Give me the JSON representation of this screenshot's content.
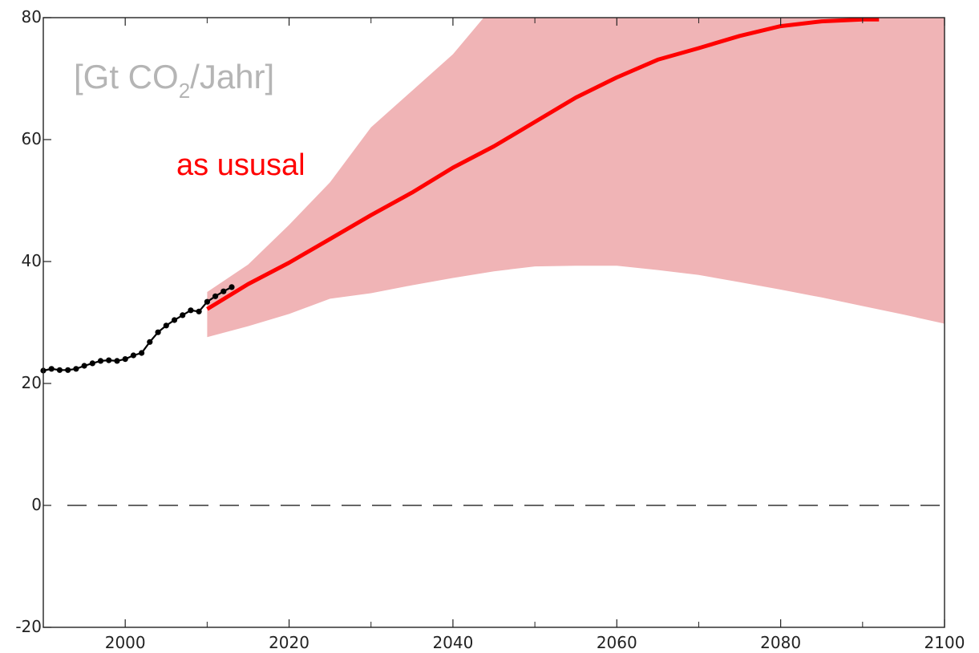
{
  "chart_data": {
    "type": "line",
    "unit_label": {
      "prefix": "[Gt CO",
      "subscript": "2",
      "suffix": "/Jahr]"
    },
    "xlim": [
      1990,
      2100
    ],
    "ylim": [
      -20,
      80
    ],
    "x_ticks": [
      2000,
      2020,
      2040,
      2060,
      2080,
      2100
    ],
    "x_tick_labels": [
      "2000",
      "2020",
      "2040",
      "2060",
      "2080",
      "2100"
    ],
    "y_ticks": [
      -20,
      0,
      20,
      40,
      60,
      80
    ],
    "y_tick_labels": [
      "-20",
      "0",
      "20",
      "40",
      "60",
      "80"
    ],
    "zero_line": {
      "y": 0,
      "style": "dashed",
      "color": "#333333"
    },
    "grid": false,
    "colors": {
      "observed": "#000000",
      "projection": "#ff0000",
      "range_band": "#f0b4b6",
      "unit_label": "#b5b5b5"
    },
    "series": [
      {
        "style": "dotted-line",
        "x": [
          1990,
          1991,
          1992,
          1993,
          1994,
          1995,
          1996,
          1997,
          1998,
          1999,
          2000,
          2001,
          2002,
          2003,
          2004,
          2005,
          2006,
          2007,
          2008,
          2009,
          2010,
          2011,
          2012,
          2013
        ],
        "y": [
          22.1,
          22.4,
          22.2,
          22.2,
          22.4,
          22.9,
          23.3,
          23.7,
          23.8,
          23.7,
          24.0,
          24.6,
          25.0,
          26.8,
          28.4,
          29.5,
          30.4,
          31.2,
          32.0,
          31.8,
          33.4,
          34.3,
          35.1,
          35.8
        ]
      },
      {
        "style": "line",
        "label": "as ususal",
        "x": [
          2010,
          2015,
          2020,
          2025,
          2030,
          2035,
          2040,
          2045,
          2050,
          2055,
          2060,
          2065,
          2070,
          2075,
          2080,
          2085,
          2090,
          2092
        ],
        "y": [
          32.2,
          36.3,
          39.8,
          43.7,
          47.6,
          51.3,
          55.4,
          58.9,
          62.9,
          66.9,
          70.2,
          73.1,
          75.0,
          77.0,
          78.6,
          79.4,
          79.7,
          79.7
        ]
      }
    ],
    "range_band": {
      "x": [
        2010,
        2015,
        2020,
        2025,
        2030,
        2035,
        2040,
        2045,
        2050,
        2055,
        2060,
        2065,
        2070,
        2075,
        2080,
        2085,
        2090,
        2095,
        2100
      ],
      "upper": [
        35.0,
        39.5,
        46.0,
        53.0,
        62.0,
        68.0,
        74.0,
        82.0,
        90.0,
        95.0,
        100.0,
        100.0,
        100.0,
        100.0,
        100.0,
        100.0,
        100.0,
        100.0,
        100.0
      ],
      "lower": [
        27.6,
        29.4,
        31.4,
        33.9,
        34.8,
        36.1,
        37.3,
        38.4,
        39.2,
        39.3,
        39.3,
        38.6,
        37.8,
        36.6,
        35.4,
        34.1,
        32.7,
        31.3,
        29.8
      ]
    }
  }
}
